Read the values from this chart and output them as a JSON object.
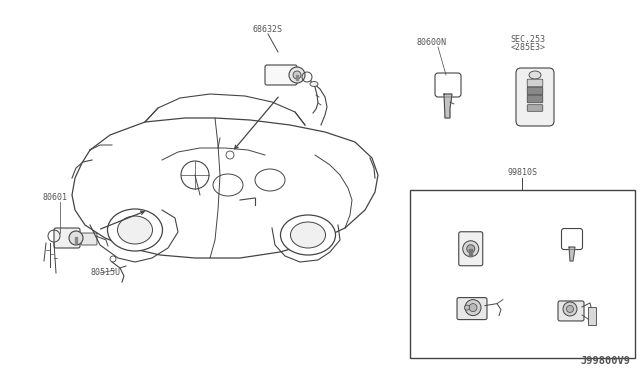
{
  "bg_color": "#ffffff",
  "diagram_id": "J99800V9",
  "labels": {
    "part1": "68632S",
    "part2": "80601",
    "part3": "80515U",
    "part4": "80600N",
    "part5_line1": "SEC.253",
    "part5_line2": "<285E3>",
    "part6": "99810S"
  },
  "line_color": "#444444",
  "text_color": "#555555",
  "font_size_label": 6.0,
  "font_size_id": 7.5,
  "box_color": "#444444"
}
